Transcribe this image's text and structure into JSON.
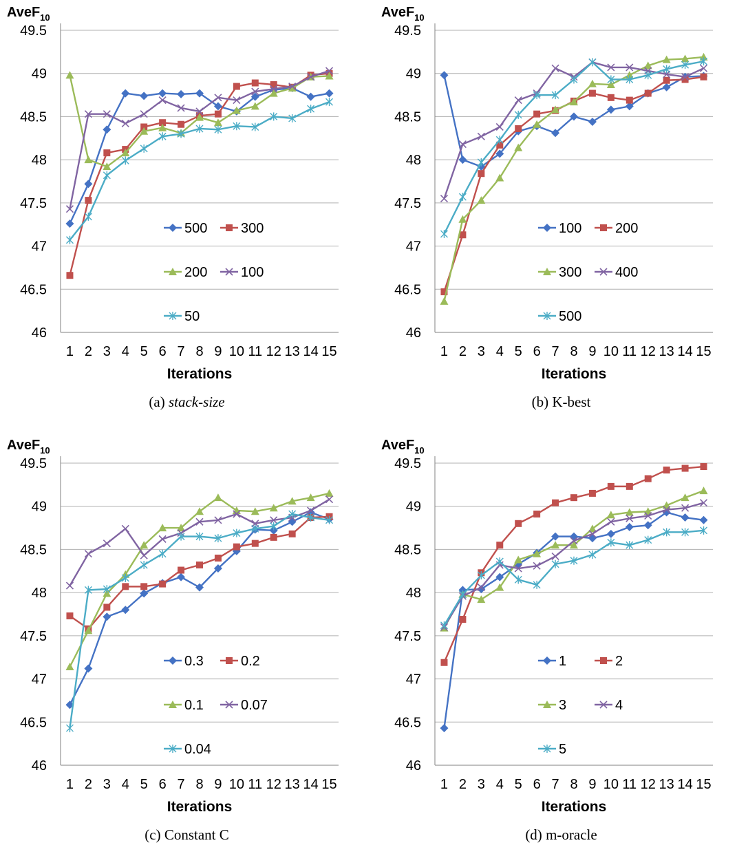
{
  "colors": {
    "s1": "#4472C4",
    "s2": "#C0504D",
    "s3": "#9BBB59",
    "s4": "#8064A2",
    "s5": "#4BACC6",
    "grid": "#B0B0B0",
    "axis": "#808080"
  },
  "chart_data": [
    {
      "id": "a",
      "type": "line",
      "ylabel_main": "AveF",
      "ylabel_sub": "10",
      "xlabel": "Iterations",
      "caption_prefix": "(a)",
      "caption_text": "stack-size",
      "caption_italic": true,
      "ylim": [
        46,
        49.5
      ],
      "yticks": [
        "46",
        "46.5",
        "47",
        "47.5",
        "48",
        "48.5",
        "49",
        "49.5"
      ],
      "categories": [
        "1",
        "2",
        "3",
        "4",
        "5",
        "6",
        "7",
        "8",
        "9",
        "10",
        "11",
        "12",
        "13",
        "14",
        "15"
      ],
      "legend_layout": "two-column",
      "series": [
        {
          "name": "500",
          "marker": "diamond",
          "values": [
            47.26,
            47.72,
            48.35,
            48.77,
            48.74,
            48.77,
            48.76,
            48.77,
            48.62,
            48.56,
            48.73,
            48.81,
            48.83,
            48.73,
            48.77
          ]
        },
        {
          "name": "300",
          "marker": "square",
          "values": [
            46.66,
            47.53,
            48.08,
            48.12,
            48.38,
            48.43,
            48.41,
            48.51,
            48.53,
            48.85,
            48.89,
            48.87,
            48.84,
            48.98,
            49.0
          ]
        },
        {
          "name": "200",
          "marker": "triangle",
          "values": [
            48.98,
            48.0,
            47.92,
            48.08,
            48.33,
            48.37,
            48.31,
            48.49,
            48.43,
            48.57,
            48.62,
            48.77,
            48.83,
            48.96,
            48.97
          ]
        },
        {
          "name": "100",
          "marker": "x",
          "values": [
            47.43,
            48.53,
            48.53,
            48.42,
            48.53,
            48.69,
            48.6,
            48.56,
            48.72,
            48.69,
            48.79,
            48.82,
            48.85,
            48.96,
            49.03
          ]
        },
        {
          "name": "50",
          "marker": "star",
          "values": [
            47.07,
            47.34,
            47.82,
            47.99,
            48.13,
            48.27,
            48.3,
            48.36,
            48.35,
            48.39,
            48.38,
            48.5,
            48.48,
            48.59,
            48.67
          ]
        }
      ]
    },
    {
      "id": "b",
      "type": "line",
      "ylabel_main": "AveF",
      "ylabel_sub": "10",
      "xlabel": "Iterations",
      "caption_prefix": "(b)",
      "caption_text": "K-best",
      "caption_italic": false,
      "ylim": [
        46,
        49.5
      ],
      "yticks": [
        "46",
        "46.5",
        "47",
        "47.5",
        "48",
        "48.5",
        "49",
        "49.5"
      ],
      "categories": [
        "1",
        "2",
        "3",
        "4",
        "5",
        "6",
        "7",
        "8",
        "9",
        "10",
        "11",
        "12",
        "13",
        "14",
        "15"
      ],
      "legend_layout": "two-column",
      "series": [
        {
          "name": "100",
          "marker": "diamond",
          "values": [
            48.98,
            48.0,
            47.92,
            48.07,
            48.33,
            48.39,
            48.31,
            48.5,
            48.44,
            48.58,
            48.62,
            48.77,
            48.84,
            48.96,
            48.97
          ]
        },
        {
          "name": "200",
          "marker": "square",
          "values": [
            46.47,
            47.13,
            47.84,
            48.17,
            48.36,
            48.53,
            48.57,
            48.68,
            48.77,
            48.72,
            48.69,
            48.77,
            48.92,
            48.93,
            48.96
          ]
        },
        {
          "name": "300",
          "marker": "triangle",
          "values": [
            46.36,
            47.31,
            47.53,
            47.79,
            48.14,
            48.41,
            48.58,
            48.67,
            48.88,
            48.87,
            48.98,
            49.09,
            49.16,
            49.17,
            49.19
          ]
        },
        {
          "name": "400",
          "marker": "x",
          "values": [
            47.55,
            48.18,
            48.27,
            48.38,
            48.69,
            48.77,
            49.06,
            48.96,
            49.13,
            49.07,
            49.07,
            49.03,
            48.99,
            48.96,
            49.06
          ]
        },
        {
          "name": "500",
          "marker": "star",
          "values": [
            47.14,
            47.57,
            47.97,
            48.23,
            48.52,
            48.75,
            48.75,
            48.93,
            49.13,
            48.93,
            48.93,
            48.98,
            49.05,
            49.1,
            49.14
          ]
        }
      ]
    },
    {
      "id": "c",
      "type": "line",
      "ylabel_main": "AveF",
      "ylabel_sub": "10",
      "xlabel": "Iterations",
      "caption_prefix": "(c)",
      "caption_text": "Constant C",
      "caption_italic": false,
      "ylim": [
        46,
        49.5
      ],
      "yticks": [
        "46",
        "46.5",
        "47",
        "47.5",
        "48",
        "48.5",
        "49",
        "49.5"
      ],
      "categories": [
        "1",
        "2",
        "3",
        "4",
        "5",
        "6",
        "7",
        "8",
        "9",
        "10",
        "11",
        "12",
        "13",
        "14",
        "15"
      ],
      "legend_layout": "two-column",
      "series": [
        {
          "name": "0.3",
          "marker": "diamond",
          "values": [
            46.7,
            47.12,
            47.72,
            47.8,
            47.99,
            48.11,
            48.18,
            48.06,
            48.28,
            48.48,
            48.73,
            48.72,
            48.82,
            48.93,
            48.85
          ]
        },
        {
          "name": "0.2",
          "marker": "square",
          "values": [
            47.73,
            47.58,
            47.83,
            48.07,
            48.07,
            48.1,
            48.26,
            48.32,
            48.4,
            48.53,
            48.57,
            48.64,
            48.68,
            48.87,
            48.88
          ]
        },
        {
          "name": "0.1",
          "marker": "triangle",
          "values": [
            47.14,
            47.56,
            47.99,
            48.21,
            48.55,
            48.75,
            48.75,
            48.94,
            49.1,
            48.95,
            48.94,
            48.98,
            49.06,
            49.1,
            49.15
          ]
        },
        {
          "name": "0.07",
          "marker": "x",
          "values": [
            48.08,
            48.45,
            48.57,
            48.74,
            48.43,
            48.62,
            48.69,
            48.82,
            48.84,
            48.91,
            48.8,
            48.84,
            48.87,
            48.95,
            49.08
          ]
        },
        {
          "name": "0.04",
          "marker": "star",
          "values": [
            46.43,
            48.03,
            48.04,
            48.17,
            48.32,
            48.45,
            48.65,
            48.65,
            48.63,
            48.69,
            48.74,
            48.77,
            48.91,
            48.87,
            48.84
          ]
        }
      ]
    },
    {
      "id": "d",
      "type": "line",
      "ylabel_main": "AveF",
      "ylabel_sub": "10",
      "xlabel": "Iterations",
      "caption_prefix": "(d)",
      "caption_text": "m-oracle",
      "caption_italic": false,
      "ylim": [
        46,
        49.5
      ],
      "yticks": [
        "46",
        "46.5",
        "47",
        "47.5",
        "48",
        "48.5",
        "49",
        "49.5"
      ],
      "categories": [
        "1",
        "2",
        "3",
        "4",
        "5",
        "6",
        "7",
        "8",
        "9",
        "10",
        "11",
        "12",
        "13",
        "14",
        "15"
      ],
      "legend_layout": "two-column",
      "series": [
        {
          "name": "1",
          "marker": "diamond",
          "values": [
            46.43,
            48.03,
            48.04,
            48.18,
            48.33,
            48.46,
            48.65,
            48.65,
            48.63,
            48.68,
            48.76,
            48.78,
            48.93,
            48.87,
            48.84
          ]
        },
        {
          "name": "2",
          "marker": "square",
          "values": [
            47.19,
            47.69,
            48.23,
            48.55,
            48.8,
            48.91,
            49.04,
            49.1,
            49.15,
            49.23,
            49.23,
            49.32,
            49.42,
            49.44,
            49.46
          ]
        },
        {
          "name": "3",
          "marker": "triangle",
          "values": [
            47.59,
            47.98,
            47.92,
            48.06,
            48.38,
            48.45,
            48.55,
            48.55,
            48.74,
            48.9,
            48.93,
            48.94,
            49.01,
            49.1,
            49.18
          ]
        },
        {
          "name": "4",
          "marker": "x",
          "values": [
            47.6,
            47.96,
            48.06,
            48.32,
            48.28,
            48.31,
            48.42,
            48.6,
            48.68,
            48.82,
            48.86,
            48.89,
            48.96,
            48.98,
            49.04
          ]
        },
        {
          "name": "5",
          "marker": "star",
          "values": [
            47.62,
            47.98,
            48.2,
            48.36,
            48.15,
            48.09,
            48.33,
            48.37,
            48.44,
            48.58,
            48.55,
            48.61,
            48.7,
            48.7,
            48.72
          ]
        }
      ]
    }
  ]
}
